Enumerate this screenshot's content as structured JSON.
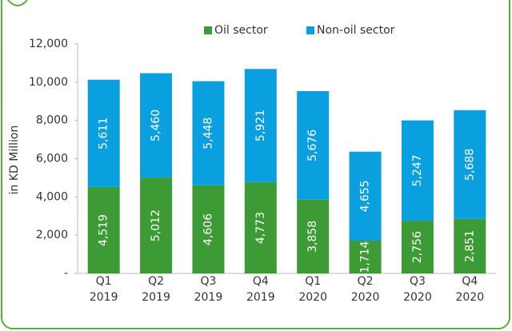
{
  "chart_data": {
    "type": "stacked_bar",
    "y_axis_label": "in KD Million",
    "categories": [
      "Q1 2019",
      "Q2 2019",
      "Q3 2019",
      "Q4 2019",
      "Q1 2020",
      "Q2 2020",
      "Q3 2020",
      "Q4 2020"
    ],
    "series": [
      {
        "name": "Oil sector",
        "color": "#3d9b35",
        "values": [
          4519,
          5012,
          4606,
          4773,
          3858,
          1714,
          2756,
          2851
        ],
        "value_labels": [
          "4,519",
          "5,012",
          "4,606",
          "4,773",
          "3,858",
          "1,714",
          "2,756",
          "2,851"
        ]
      },
      {
        "name": "Non-oil sector",
        "color": "#0aa0e0",
        "values": [
          5611,
          5460,
          5448,
          5921,
          5676,
          4655,
          5247,
          5688
        ],
        "value_labels": [
          "5,611",
          "5,460",
          "5,448",
          "5,921",
          "5,676",
          "4,655",
          "5,247",
          "5,688"
        ]
      }
    ],
    "ylim": [
      0,
      12000
    ],
    "yticks": [
      {
        "value": 0,
        "label": "-"
      },
      {
        "value": 2000,
        "label": "2,000"
      },
      {
        "value": 4000,
        "label": "4,000"
      },
      {
        "value": 6000,
        "label": "6,000"
      },
      {
        "value": 8000,
        "label": "8,000"
      },
      {
        "value": 10000,
        "label": "10,000"
      },
      {
        "value": 12000,
        "label": "12,000"
      }
    ],
    "legend": "top"
  }
}
